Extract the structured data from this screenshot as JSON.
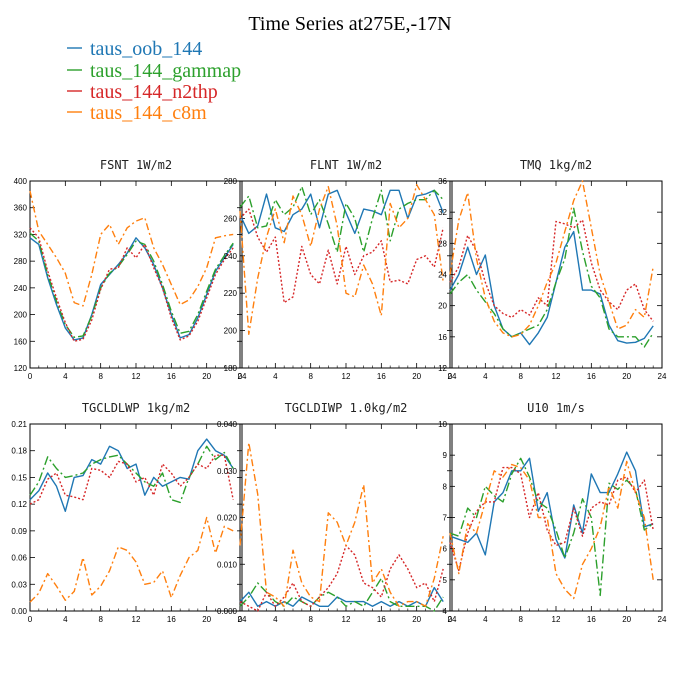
{
  "figure": {
    "title": "Time Series at275E,-17N",
    "series": [
      {
        "name": "taus_oob_144",
        "color": "#1f77b4",
        "dash": "none"
      },
      {
        "name": "taus_144_gammap",
        "color": "#2ca02c",
        "dash": "9,3,2,3"
      },
      {
        "name": "taus_144_n2thp",
        "color": "#d62728",
        "dash": "2,2"
      },
      {
        "name": "taus_144_c8m",
        "color": "#ff7f0e",
        "dash": "7,3,2,3"
      }
    ]
  },
  "chart_data": [
    {
      "type": "line",
      "title": "FSNT",
      "units": "1W/m2",
      "xlim": [
        0,
        24
      ],
      "ylim": [
        120,
        400
      ],
      "xticks": [
        0,
        4,
        8,
        12,
        16,
        20,
        24
      ],
      "yticks": [
        120,
        160,
        200,
        240,
        280,
        320,
        360,
        400
      ],
      "ytick_labels": [
        "120",
        "160",
        "200",
        "240",
        "280",
        "320",
        "360",
        "400"
      ],
      "x": [
        0,
        1,
        2,
        3,
        4,
        5,
        6,
        7,
        8,
        9,
        10,
        11,
        12,
        13,
        14,
        15,
        16,
        17,
        18,
        19,
        20,
        21,
        22,
        23
      ],
      "series": [
        {
          "name": "taus_oob_144",
          "values": [
            315,
            305,
            255,
            215,
            180,
            162,
            165,
            200,
            245,
            260,
            275,
            292,
            315,
            300,
            275,
            240,
            200,
            165,
            170,
            195,
            230,
            265,
            285,
            305
          ]
        },
        {
          "name": "taus_144_gammap",
          "values": [
            322,
            310,
            260,
            220,
            185,
            166,
            168,
            198,
            240,
            262,
            272,
            290,
            310,
            305,
            280,
            245,
            205,
            172,
            175,
            200,
            235,
            268,
            288,
            307
          ]
        },
        {
          "name": "taus_144_n2thp",
          "values": [
            330,
            315,
            265,
            225,
            188,
            160,
            163,
            192,
            238,
            268,
            270,
            300,
            285,
            305,
            270,
            240,
            195,
            162,
            168,
            190,
            225,
            260,
            282,
            300
          ]
        },
        {
          "name": "taus_144_c8m",
          "values": [
            385,
            325,
            305,
            285,
            262,
            218,
            213,
            260,
            320,
            335,
            305,
            330,
            340,
            345,
            300,
            275,
            245,
            215,
            222,
            242,
            270,
            315,
            318,
            320
          ]
        }
      ]
    },
    {
      "type": "line",
      "title": "FLNT",
      "units": "1W/m2",
      "xlim": [
        0,
        24
      ],
      "ylim": [
        180,
        280
      ],
      "xticks": [
        0,
        4,
        8,
        12,
        16,
        20,
        24
      ],
      "yticks": [
        180,
        200,
        220,
        240,
        260,
        280
      ],
      "ytick_labels": [
        "180",
        "200",
        "220",
        "240",
        "260",
        "280"
      ],
      "x": [
        0,
        1,
        2,
        3,
        4,
        5,
        6,
        7,
        8,
        9,
        10,
        11,
        12,
        13,
        14,
        15,
        16,
        17,
        18,
        19,
        20,
        21,
        22,
        23
      ],
      "series": [
        {
          "name": "taus_oob_144",
          "values": [
            262,
            252,
            256,
            273,
            255,
            253,
            262,
            265,
            273,
            255,
            273,
            275,
            263,
            252,
            265,
            264,
            262,
            275,
            275,
            260,
            272,
            273,
            275,
            263
          ]
        },
        {
          "name": "taus_144_gammap",
          "values": [
            266,
            272,
            255,
            256,
            270,
            262,
            266,
            277,
            262,
            270,
            257,
            242,
            268,
            260,
            242,
            260,
            275,
            248,
            265,
            268,
            270,
            270,
            275,
            270
          ]
        },
        {
          "name": "taus_144_n2thp",
          "values": [
            260,
            265,
            250,
            242,
            250,
            215,
            218,
            245,
            230,
            225,
            243,
            225,
            245,
            230,
            240,
            242,
            248,
            226,
            227,
            225,
            238,
            240,
            234,
            255
          ]
        },
        {
          "name": "taus_144_c8m",
          "values": [
            264,
            198,
            228,
            250,
            265,
            247,
            272,
            262,
            245,
            265,
            277,
            256,
            220,
            218,
            235,
            225,
            208,
            268,
            255,
            260,
            278,
            270,
            262,
            226
          ]
        }
      ]
    },
    {
      "type": "line",
      "title": "TMQ",
      "units": "1kg/m2",
      "xlim": [
        0,
        24
      ],
      "ylim": [
        12,
        36
      ],
      "xticks": [
        0,
        4,
        8,
        12,
        16,
        20,
        24
      ],
      "yticks": [
        12,
        16,
        20,
        24,
        28,
        32,
        36
      ],
      "ytick_labels": [
        "12",
        "16",
        "20",
        "24",
        "28",
        "32",
        "36"
      ],
      "x": [
        0,
        1,
        2,
        3,
        4,
        5,
        6,
        7,
        8,
        9,
        10,
        11,
        12,
        13,
        14,
        15,
        16,
        17,
        18,
        19,
        20,
        21,
        22,
        23
      ],
      "series": [
        {
          "name": "taus_oob_144",
          "values": [
            22,
            24,
            27.5,
            24,
            26.5,
            20,
            17,
            16,
            16.5,
            15,
            16.5,
            18.5,
            23,
            27.5,
            29.5,
            22,
            22,
            21.5,
            17.5,
            15.5,
            15.2,
            15.3,
            15.8,
            17.4
          ]
        },
        {
          "name": "taus_144_gammap",
          "values": [
            21.5,
            23,
            24,
            22,
            20.5,
            19,
            17,
            16,
            16.5,
            17,
            17.5,
            19.5,
            23,
            26,
            32.5,
            27,
            22.5,
            21,
            17,
            16,
            16,
            16,
            14.7,
            16.5
          ]
        },
        {
          "name": "taus_144_n2thp",
          "values": [
            23,
            25,
            29,
            27,
            23,
            20,
            19,
            18.5,
            19.5,
            18.8,
            21,
            20,
            30.8,
            30.5,
            30,
            31,
            25.5,
            22,
            20.5,
            19.5,
            22,
            22.8,
            19.5,
            18
          ]
        },
        {
          "name": "taus_144_c8m",
          "values": [
            24,
            31,
            34.5,
            26,
            21,
            18,
            16.5,
            16,
            16.3,
            17.5,
            20,
            23,
            25.5,
            29.5,
            33.5,
            36,
            30,
            24,
            20.5,
            17,
            17.5,
            19.5,
            18.5,
            25
          ]
        }
      ]
    },
    {
      "type": "line",
      "title": "TGCLDLWP",
      "units": "1kg/m2",
      "xlim": [
        0,
        24
      ],
      "ylim": [
        0,
        0.21
      ],
      "xticks": [
        0,
        4,
        8,
        12,
        16,
        20,
        24
      ],
      "yticks": [
        0,
        0.03,
        0.06,
        0.09,
        0.12,
        0.15,
        0.18,
        0.21
      ],
      "ytick_labels": [
        "0.00",
        "0.03",
        "0.06",
        "0.09",
        "0.12",
        "0.15",
        "0.18",
        "0.21"
      ],
      "x": [
        0,
        1,
        2,
        3,
        4,
        5,
        6,
        7,
        8,
        9,
        10,
        11,
        12,
        13,
        14,
        15,
        16,
        17,
        18,
        19,
        20,
        21,
        22,
        23
      ],
      "series": [
        {
          "name": "taus_oob_144",
          "values": [
            0.125,
            0.135,
            0.155,
            0.14,
            0.112,
            0.15,
            0.152,
            0.17,
            0.165,
            0.185,
            0.18,
            0.16,
            0.165,
            0.13,
            0.15,
            0.14,
            0.145,
            0.15,
            0.148,
            0.18,
            0.193,
            0.18,
            0.175,
            0.16
          ]
        },
        {
          "name": "taus_144_gammap",
          "values": [
            0.13,
            0.145,
            0.173,
            0.16,
            0.15,
            0.152,
            0.155,
            0.165,
            0.17,
            0.173,
            0.175,
            0.165,
            0.155,
            0.145,
            0.14,
            0.155,
            0.125,
            0.122,
            0.15,
            0.165,
            0.185,
            0.17,
            0.178,
            0.16
          ]
        },
        {
          "name": "taus_144_n2thp",
          "values": [
            0.12,
            0.125,
            0.148,
            0.155,
            0.13,
            0.128,
            0.125,
            0.16,
            0.158,
            0.15,
            0.168,
            0.165,
            0.145,
            0.15,
            0.13,
            0.165,
            0.155,
            0.14,
            0.15,
            0.165,
            0.16,
            0.175,
            0.175,
            0.125
          ]
        },
        {
          "name": "taus_144_c8m",
          "values": [
            0.01,
            0.02,
            0.042,
            0.028,
            0.012,
            0.022,
            0.06,
            0.018,
            0.028,
            0.045,
            0.072,
            0.068,
            0.055,
            0.03,
            0.032,
            0.045,
            0.015,
            0.04,
            0.06,
            0.068,
            0.105,
            0.065,
            0.095,
            0.09
          ]
        }
      ]
    },
    {
      "type": "line",
      "title": "TGCLDIWP",
      "units": "1.0kg/m2",
      "xlim": [
        0,
        24
      ],
      "ylim": [
        0,
        0.04
      ],
      "xticks": [
        0,
        4,
        8,
        12,
        16,
        20,
        24
      ],
      "yticks": [
        0,
        0.01,
        0.02,
        0.03,
        0.04
      ],
      "ytick_labels": [
        "0.000",
        "0.010",
        "0.020",
        "0.030",
        "0.040"
      ],
      "x": [
        0,
        1,
        2,
        3,
        4,
        5,
        6,
        7,
        8,
        9,
        10,
        11,
        12,
        13,
        14,
        15,
        16,
        17,
        18,
        19,
        20,
        21,
        22,
        23
      ],
      "series": [
        {
          "name": "taus_oob_144",
          "values": [
            0.002,
            0.004,
            0.001,
            0.002,
            0.001,
            0.002,
            0.001,
            0.003,
            0.002,
            0.001,
            0.001,
            0.003,
            0.002,
            0.002,
            0.002,
            0.001,
            0.002,
            0.001,
            0.002,
            0.001,
            0.002,
            0.001,
            0.005,
            0.002
          ]
        },
        {
          "name": "taus_144_gammap",
          "values": [
            0.001,
            0.003,
            0.006,
            0.004,
            0.002,
            0.001,
            0.003,
            0.002,
            0.001,
            0.003,
            0.004,
            0.003,
            0.001,
            0.002,
            0.001,
            0.004,
            0.007,
            0.002,
            0.001,
            0.001,
            0.001,
            0.001,
            0.0,
            0.003
          ]
        },
        {
          "name": "taus_144_n2thp",
          "values": [
            0.002,
            0.001,
            0.0,
            0.004,
            0.001,
            0.003,
            0.006,
            0.002,
            0.001,
            0.003,
            0.005,
            0.008,
            0.014,
            0.012,
            0.006,
            0.005,
            0.003,
            0.009,
            0.012,
            0.009,
            0.005,
            0.006,
            0.002,
            0.009
          ]
        },
        {
          "name": "taus_144_c8m",
          "values": [
            0.014,
            0.036,
            0.025,
            0.004,
            0.003,
            0.001,
            0.013,
            0.006,
            0.003,
            0.002,
            0.021,
            0.019,
            0.014,
            0.019,
            0.027,
            0.006,
            0.009,
            0.004,
            0.001,
            0.002,
            0.002,
            0.001,
            0.007,
            0.016
          ]
        }
      ]
    },
    {
      "type": "line",
      "title": "U10",
      "units": "1m/s",
      "xlim": [
        0,
        24
      ],
      "ylim": [
        4,
        10
      ],
      "xticks": [
        0,
        4,
        8,
        12,
        16,
        20,
        24
      ],
      "yticks": [
        4,
        5,
        6,
        7,
        8,
        9,
        10
      ],
      "ytick_labels": [
        "4",
        "5",
        "6",
        "7",
        "8",
        "9",
        "10"
      ],
      "x": [
        0,
        1,
        2,
        3,
        4,
        5,
        6,
        7,
        8,
        9,
        10,
        11,
        12,
        13,
        14,
        15,
        16,
        17,
        18,
        19,
        20,
        21,
        22,
        23
      ],
      "series": [
        {
          "name": "taus_oob_144",
          "values": [
            6.4,
            6.3,
            6.2,
            6.5,
            5.8,
            7.5,
            7.8,
            8.5,
            8.5,
            8.9,
            7.2,
            7.8,
            6.3,
            5.7,
            7.4,
            6.5,
            8.4,
            7.8,
            7.8,
            8.4,
            9.1,
            8.5,
            6.7,
            6.8
          ]
        },
        {
          "name": "taus_144_gammap",
          "values": [
            6.5,
            6.4,
            7.3,
            7.0,
            8.0,
            7.7,
            7.5,
            8.4,
            8.9,
            8.3,
            7.5,
            7.3,
            6.6,
            5.7,
            6.5,
            7.6,
            7.0,
            4.5,
            8.1,
            7.9,
            8.2,
            7.9,
            6.6,
            6.8
          ]
        },
        {
          "name": "taus_144_n2thp",
          "values": [
            6.2,
            5.3,
            6.5,
            7.2,
            7.5,
            7.5,
            8.6,
            8.6,
            8.4,
            7.0,
            7.8,
            6.6,
            6.1,
            6.2,
            7.3,
            6.4,
            7.3,
            7.5,
            7.4,
            8.2,
            8.3,
            7.8,
            8.2,
            6.6
          ]
        },
        {
          "name": "taus_144_c8m",
          "values": [
            6.5,
            5.2,
            6.8,
            6.5,
            7.5,
            8.5,
            8.3,
            8.7,
            8.6,
            8.2,
            7.0,
            7.0,
            5.2,
            4.7,
            4.4,
            5.5,
            6.0,
            6.7,
            8.0,
            7.3,
            8.8,
            7.8,
            7.0,
            5.0
          ]
        }
      ]
    }
  ]
}
